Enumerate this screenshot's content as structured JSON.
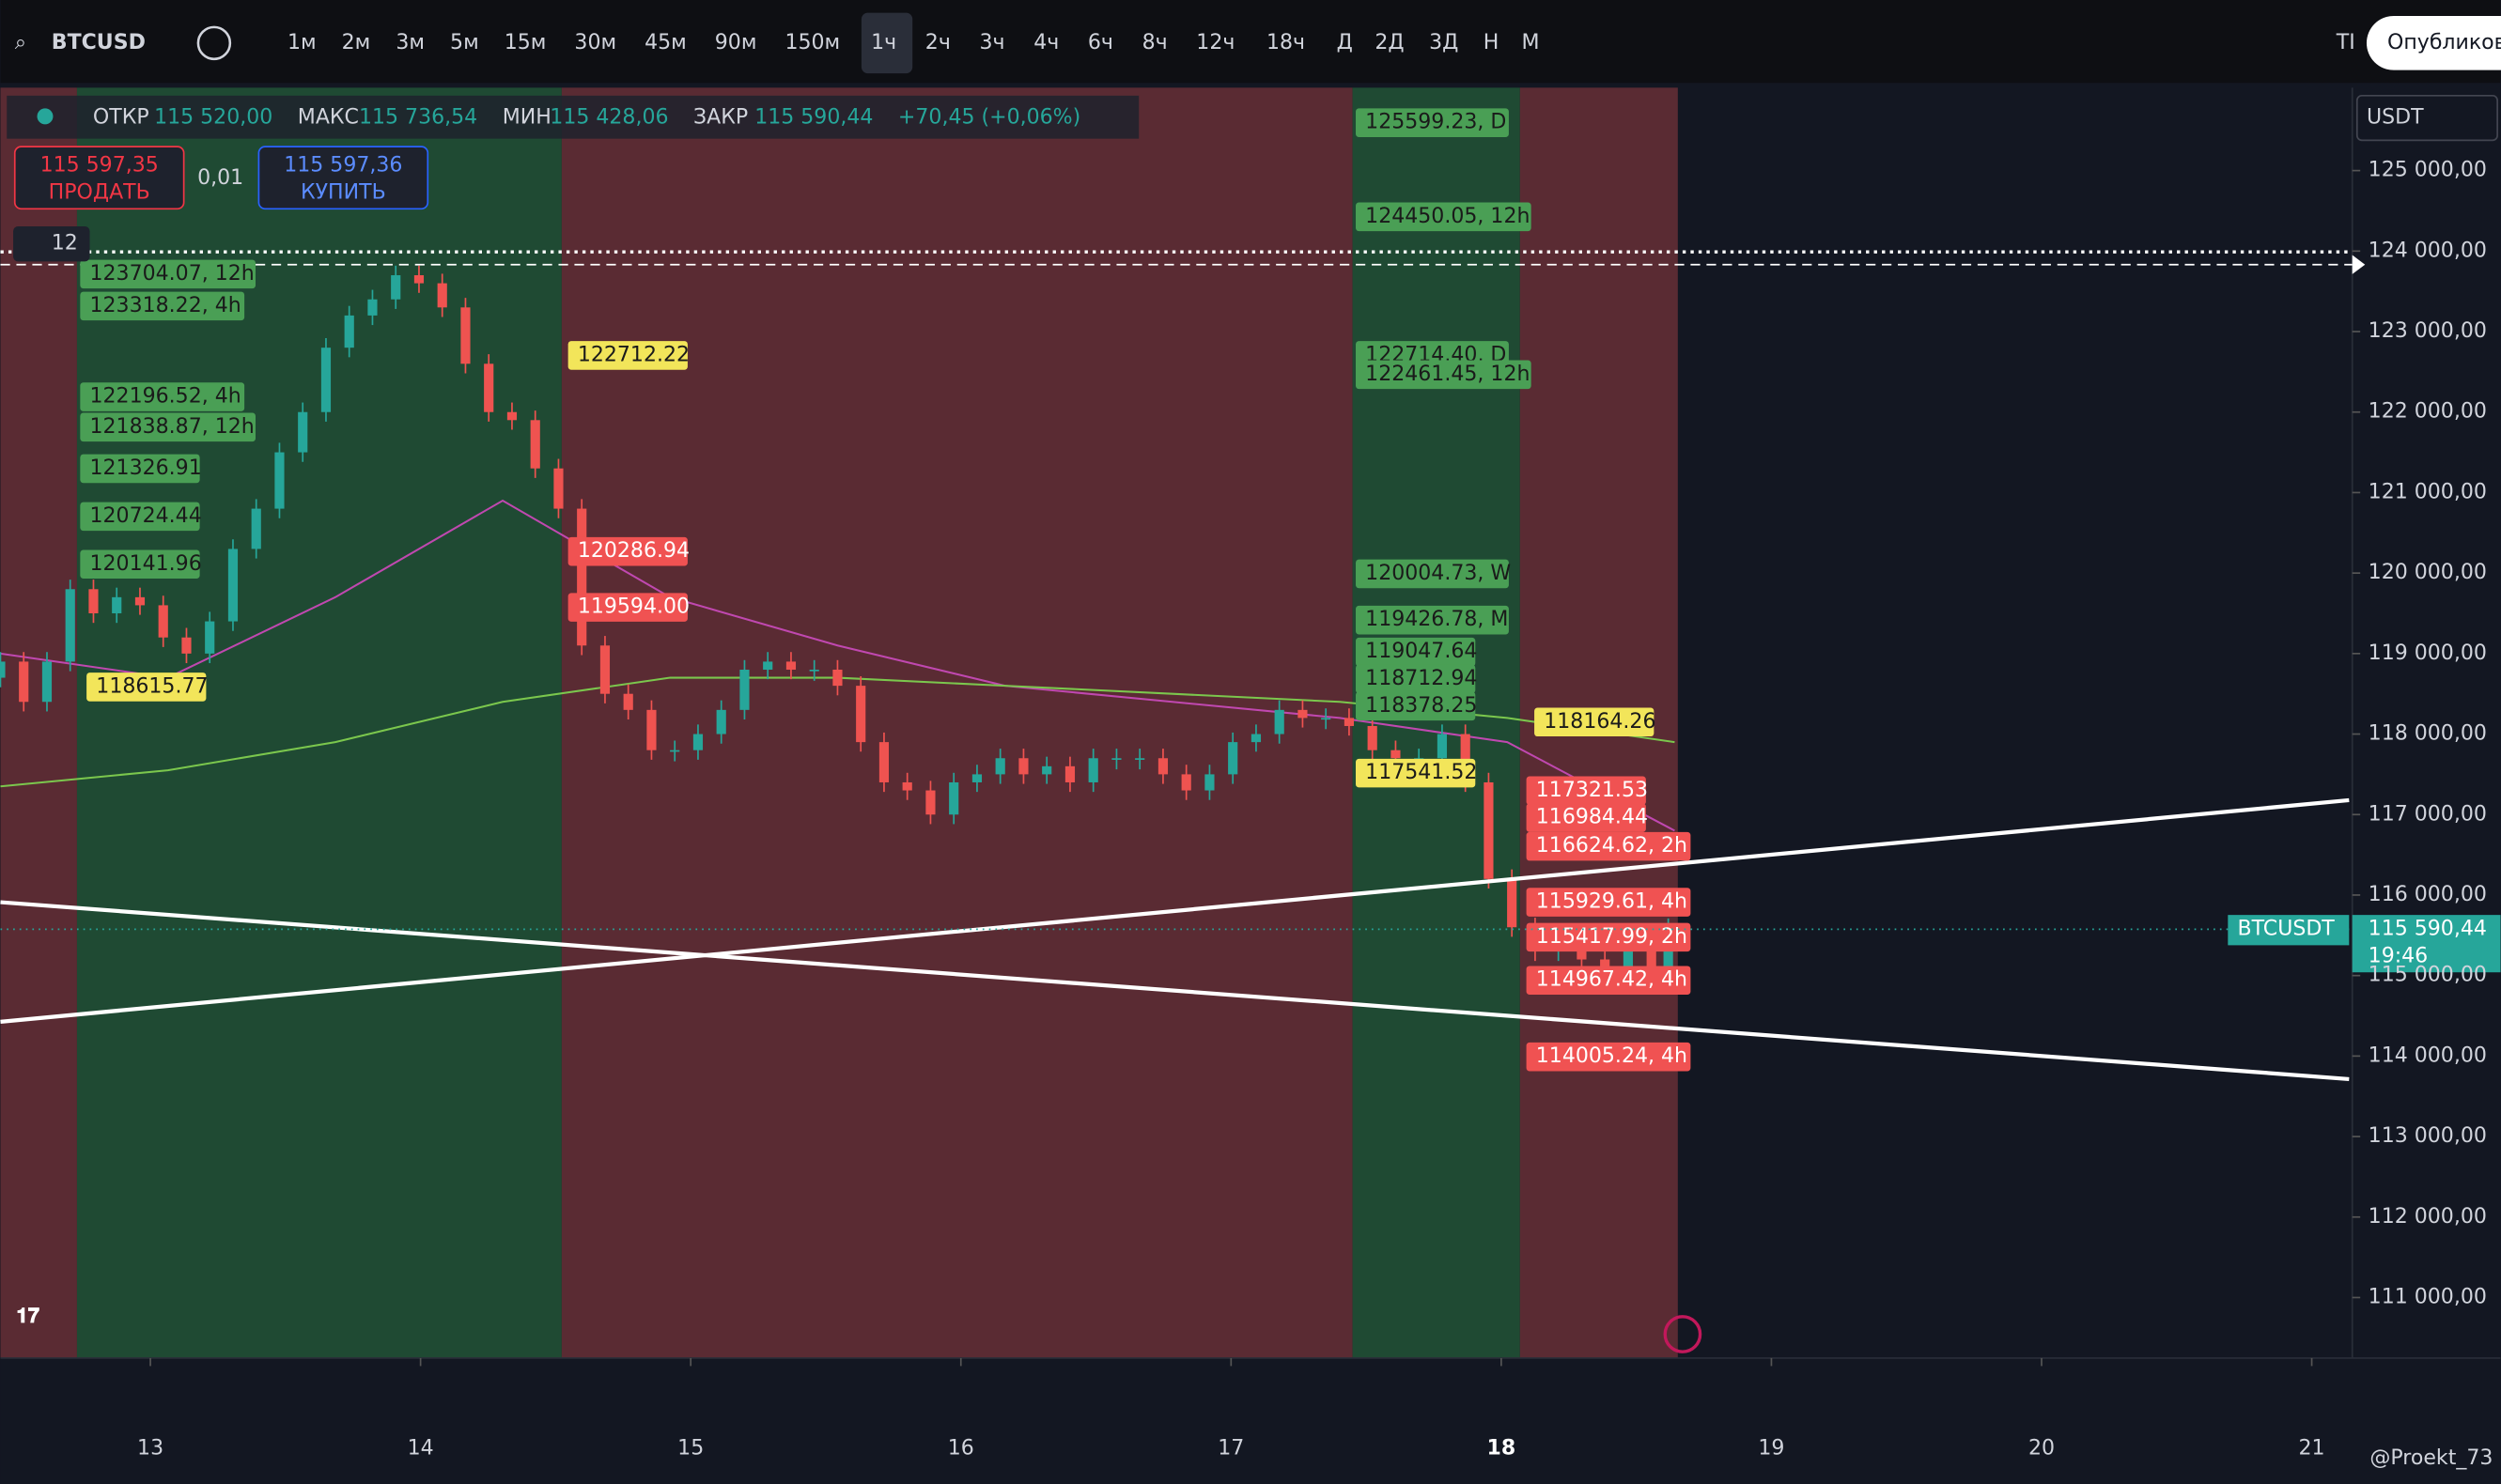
{
  "toolbar": {
    "symbol": "BTCUSD",
    "intervals": [
      "1м",
      "2м",
      "3м",
      "5м",
      "15м",
      "30м",
      "45м",
      "90м",
      "150м",
      "1ч",
      "2ч",
      "3ч",
      "4ч",
      "6ч",
      "8ч",
      "12ч",
      "18ч",
      "Д",
      "2Д",
      "3Д",
      "Н",
      "М"
    ],
    "cut_label": "TI",
    "publish": "Опубликовать"
  },
  "legend": {
    "open_label": "ОТКР",
    "open": "115 520,00",
    "high_label": "МАКС",
    "high": "115 736,54",
    "low_label": "МИН",
    "low": "115 428,06",
    "close_label": "ЗАКР",
    "close": "115 590,44",
    "change": "+70,45 (+0,06%)"
  },
  "trade": {
    "sell_price": "115 597,35",
    "sell": "ПРОДАТЬ",
    "spread": "0,01",
    "buy_price": "115 597,36",
    "buy": "КУПИТЬ",
    "indicators": "12"
  },
  "currency": "USDT",
  "price_tag": {
    "symbol": "BTCUSDT",
    "price": "115 590,44",
    "countdown": "19:46"
  },
  "watermark": "@Proekt_73",
  "chart_data": {
    "type": "candlestick",
    "open": 118700,
    "closes": [
      118900,
      118400,
      118900,
      119800,
      119500,
      119700,
      119600,
      119200,
      119000,
      119400,
      120300,
      120800,
      121500,
      122000,
      122800,
      123200,
      123400,
      123700,
      123600,
      123300,
      122600,
      122000,
      121900,
      121300,
      120800,
      119100,
      118500,
      118300,
      117800,
      117800,
      118000,
      118300,
      118800,
      118900,
      118800,
      118800,
      118600,
      117900,
      117400,
      117300,
      117000,
      117400,
      117500,
      117700,
      117500,
      117600,
      117400,
      117700,
      117700,
      117700,
      117500,
      117300,
      117500,
      117900,
      118000,
      118300,
      118200,
      118200,
      118100,
      117800,
      117700,
      117700,
      118000,
      117400,
      116200,
      115600,
      115300,
      115400,
      115200,
      115000,
      115300,
      115100,
      115590.44
    ],
    "series": [
      {
        "name": "MA",
        "color": "#c048b0",
        "values": [
          119000,
          118700,
          119700,
          120900,
          119700,
          119100,
          118600,
          118400,
          118200,
          117900,
          116800
        ]
      },
      {
        "name": "MA",
        "color": "#7bc74d",
        "values": [
          117350,
          117550,
          117900,
          118400,
          118700,
          118700,
          118600,
          118500,
          118400,
          118200,
          117900
        ]
      }
    ],
    "ylim": [
      110248,
      126030
    ],
    "yticks": [
      {
        "value": 125000,
        "label": "125 000,00"
      },
      {
        "value": 124000,
        "label": "124 000,00"
      },
      {
        "value": 123000,
        "label": "123 000,00"
      },
      {
        "value": 122000,
        "label": "122 000,00"
      },
      {
        "value": 121000,
        "label": "121 000,00"
      },
      {
        "value": 120000,
        "label": "120 000,00"
      },
      {
        "value": 119000,
        "label": "119 000,00"
      },
      {
        "value": 118000,
        "label": "118 000,00"
      },
      {
        "value": 117000,
        "label": "117 000,00"
      },
      {
        "value": 116000,
        "label": "116 000,00"
      },
      {
        "value": 115000,
        "label": "115 000,00"
      },
      {
        "value": 114000,
        "label": "114 000,00"
      },
      {
        "value": 113000,
        "label": "113 000,00"
      },
      {
        "value": 112000,
        "label": "112 000,00"
      },
      {
        "value": 111000,
        "label": "111 000,00"
      }
    ],
    "xlim": [
      12.445,
      21.15
    ],
    "xticks": [
      13,
      14,
      15,
      16,
      17,
      18,
      19,
      20,
      21
    ],
    "annotations": [
      "123704.07, 12h",
      "123318.22, 4h",
      "122196.52, 4h",
      "121838.87, 12h",
      "121326.91",
      "120724.44",
      "120141.96",
      "118615.77",
      "122712.22",
      "120286.94",
      "119594.00",
      "125599.23, D",
      "124450.05, 12h",
      "122714.40, D",
      "122461.45, 12h",
      "120004.73, W",
      "119426.78, M",
      "119047.64",
      "118712.94",
      "118378.25",
      "117541.52",
      "118164.26",
      "117321.53",
      "116984.44",
      "116624.62, 2h",
      "115929.61, 4h",
      "115417.99, 2h",
      "114967.42, 4h",
      "114005.24, 4h"
    ]
  }
}
